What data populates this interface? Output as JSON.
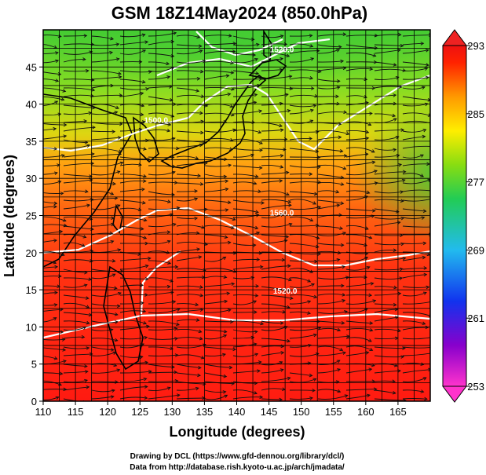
{
  "title": "GSM 18Z14May2024 (850.0hPa)",
  "x_axis": {
    "label": "Longitude (degrees)",
    "min": 110,
    "max": 170,
    "ticks": [
      110,
      115,
      120,
      125,
      130,
      135,
      140,
      145,
      150,
      155,
      160,
      165
    ]
  },
  "y_axis": {
    "label": "Latitude  (degrees)",
    "min": 0,
    "max": 50,
    "ticks": [
      0,
      5,
      10,
      15,
      20,
      25,
      30,
      35,
      40,
      45
    ]
  },
  "colorbar": {
    "min": 253,
    "max": 293,
    "ticks": [
      253,
      261,
      269,
      277,
      285,
      293
    ],
    "colors": [
      "#ff33cc",
      "#8800cc",
      "#1133ee",
      "#22bbee",
      "#22cc55",
      "#88dd11",
      "#ffee00",
      "#ff9900",
      "#ff2200",
      "#ee1111"
    ]
  },
  "contours": [
    {
      "label": "1520.0",
      "lon": 147.5,
      "lat": 14.5
    },
    {
      "label": "1560.0",
      "lon": 147.0,
      "lat": 25.0
    },
    {
      "label": "1500.0",
      "lon": 127.5,
      "lat": 37.5
    },
    {
      "label": "1520.0",
      "lon": 147.0,
      "lat": 47.0
    }
  ],
  "credits": {
    "line1": "Drawing by DCL (https://www.gfd-dennou.org/library/dcl/)",
    "line2": "Data from http://database.rish.kyoto-u.ac.jp/arch/jmadata/"
  }
}
